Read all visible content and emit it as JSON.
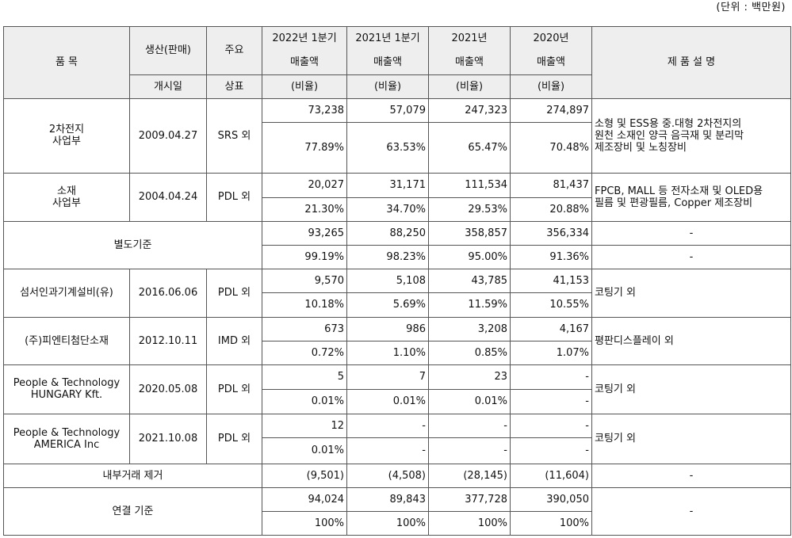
{
  "unit_label": "(단위 : 백만원)",
  "header": {
    "item": "품 목",
    "prod_date_top": "생산(판매)",
    "prod_date_bottom": "개시일",
    "brand_top": "주요",
    "brand_bottom": "상표",
    "col1_top": "2022년 1분기",
    "col1_mid": "매출액",
    "col2_top": "2021년 1분기",
    "col2_mid": "매출액",
    "col3_top": "2021년",
    "col3_mid": "매출액",
    "col4_top": "2020년",
    "col4_mid": "매출액",
    "ratio": "(비율)",
    "desc": "제 품 설 명"
  },
  "rows": [
    {
      "name_line1": "2차전지",
      "name_line2": "사업부",
      "date": "2009.04.27",
      "brand": "SRS 외",
      "sales": [
        "73,238",
        "57,079",
        "247,323",
        "274,897"
      ],
      "ratio": [
        "77.89%",
        "63.53%",
        "65.47%",
        "70.48%"
      ],
      "desc_line1": "소형 및 ESS용 중.대형 2차전지의",
      "desc_line2": "원천 소재인 양극 음극재 및 분리막",
      "desc_line3": "제조장비 및 노칭장비"
    },
    {
      "name_line1": "소재",
      "name_line2": "사업부",
      "date": "2004.04.24",
      "brand": "PDL 외",
      "sales": [
        "20,027",
        "31,171",
        "111,534",
        "81,437"
      ],
      "ratio": [
        "21.30%",
        "34.70%",
        "29.53%",
        "20.88%"
      ],
      "desc_line1": "FPCB, MALL 등 전자소재 및 OLED용",
      "desc_line2": "필름 및 편광필름, Copper 제조장비"
    },
    {
      "name": "별도기준",
      "sales": [
        "93,265",
        "88,250",
        "358,857",
        "356,334"
      ],
      "ratio": [
        "99.19%",
        "98.23%",
        "95.00%",
        "91.36%"
      ],
      "desc_top": "-",
      "desc_bottom": "-"
    },
    {
      "name": "섬서인과기계설비(유)",
      "date": "2016.06.06",
      "brand": "PDL 외",
      "sales": [
        "9,570",
        "5,108",
        "43,785",
        "41,153"
      ],
      "ratio": [
        "10.18%",
        "5.69%",
        "11.59%",
        "10.55%"
      ],
      "desc": "코팅기 외"
    },
    {
      "name": "(주)피엔티첨단소재",
      "date": "2012.10.11",
      "brand": "IMD 외",
      "sales": [
        "673",
        "986",
        "3,208",
        "4,167"
      ],
      "ratio": [
        "0.72%",
        "1.10%",
        "0.85%",
        "1.07%"
      ],
      "desc": "평판디스플레이 외"
    },
    {
      "name_line1": "People & Technology",
      "name_line2": "HUNGARY Kft.",
      "date": "2020.05.08",
      "brand": "PDL 외",
      "sales": [
        "5",
        "7",
        "23",
        "-"
      ],
      "ratio": [
        "0.01%",
        "0.01%",
        "0.01%",
        "-"
      ],
      "desc": "코팅기 외"
    },
    {
      "name_line1": "People & Technology",
      "name_line2": "AMERICA Inc",
      "date": "2021.10.08",
      "brand": "PDL 외",
      "sales": [
        "12",
        "-",
        "-",
        "-"
      ],
      "ratio": [
        "0.01%",
        "-",
        "-",
        "-"
      ],
      "desc": "코팅기 외"
    },
    {
      "name": "내부거래 제거",
      "sales": [
        "(9,501)",
        "(4,508)",
        "(28,145)",
        "(11,604)"
      ],
      "desc": "-"
    },
    {
      "name": "연결 기준",
      "sales": [
        "94,024",
        "89,843",
        "377,728",
        "390,050"
      ],
      "ratio": [
        "100%",
        "100%",
        "100%",
        "100%"
      ],
      "desc": "-"
    }
  ]
}
